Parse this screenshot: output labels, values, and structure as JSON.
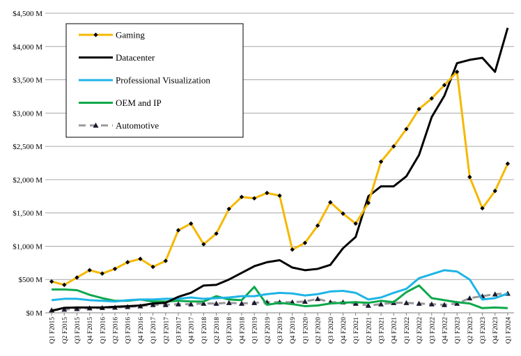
{
  "chart_data": {
    "type": "line",
    "ylim": [
      0,
      4500
    ],
    "y_ticks": [
      {
        "value": 0,
        "label": "$0 M"
      },
      {
        "value": 500,
        "label": "$500 M"
      },
      {
        "value": 1000,
        "label": "$1,000 M"
      },
      {
        "value": 1500,
        "label": "$1,500 M"
      },
      {
        "value": 2000,
        "label": "$2,000 M"
      },
      {
        "value": 2500,
        "label": "$2,500 M"
      },
      {
        "value": 3000,
        "label": "$3,000 M"
      },
      {
        "value": 3500,
        "label": "$3,500 M"
      },
      {
        "value": 4000,
        "label": "$4,000 M"
      },
      {
        "value": 4500,
        "label": "$4,500 M"
      }
    ],
    "grid": "horizontal",
    "legend_position": "top-left",
    "categories": [
      "Q1 F2015",
      "Q2 F2015",
      "Q3 F2015",
      "Q4 F2015",
      "Q1 F2016",
      "Q2 F2016",
      "Q3 F2016",
      "Q4 F2016",
      "Q1 F2017",
      "Q2 F2017",
      "Q3 F2017",
      "Q4 F2017",
      "Q1 F2018",
      "Q2 F2018",
      "Q3 F2018",
      "Q4 F2018",
      "Q1 F2019",
      "Q2 F2019",
      "Q3 F2019",
      "Q4 F2019",
      "Q1 F2020",
      "Q2 F2020",
      "Q3 F2020",
      "Q4 F2020",
      "Q1 F2021",
      "Q2 F2021",
      "Q3 F2021",
      "Q4 F2021",
      "Q1 F2022",
      "Q2 F2022",
      "Q3 F2022",
      "Q4 F2022",
      "Q1 F2023",
      "Q2 F2023",
      "Q3 F2023",
      "Q4 F2023",
      "Q1 F2024"
    ],
    "series": [
      {
        "name": "Gaming",
        "color": "#F5B800",
        "marker": "diamond",
        "dash": false,
        "values": [
          470,
          420,
          530,
          640,
          590,
          660,
          760,
          810,
          690,
          780,
          1240,
          1340,
          1030,
          1190,
          1560,
          1740,
          1720,
          1800,
          1760,
          950,
          1050,
          1310,
          1660,
          1490,
          1340,
          1650,
          2270,
          2500,
          2760,
          3060,
          3220,
          3420,
          3620,
          2040,
          1570,
          1830,
          2240
        ]
      },
      {
        "name": "Datacenter",
        "color": "#000000",
        "marker": "none",
        "dash": false,
        "values": [
          30,
          75,
          80,
          80,
          80,
          90,
          100,
          110,
          140,
          150,
          240,
          300,
          410,
          420,
          500,
          600,
          700,
          760,
          790,
          680,
          640,
          660,
          720,
          970,
          1140,
          1750,
          1900,
          1900,
          2050,
          2370,
          2940,
          3260,
          3750,
          3800,
          3830,
          3620,
          4280
        ]
      },
      {
        "name": "Professional Visualization",
        "color": "#1EB4E6",
        "marker": "none",
        "dash": false,
        "values": [
          190,
          210,
          210,
          190,
          180,
          170,
          190,
          200,
          200,
          210,
          210,
          230,
          210,
          220,
          230,
          250,
          250,
          280,
          300,
          290,
          260,
          280,
          320,
          330,
          300,
          200,
          230,
          300,
          360,
          520,
          580,
          640,
          620,
          500,
          200,
          220,
          290
        ]
      },
      {
        "name": "OEM and IP",
        "color": "#0BA84A",
        "marker": "none",
        "dash": false,
        "values": [
          350,
          350,
          340,
          270,
          220,
          180,
          180,
          200,
          170,
          170,
          180,
          170,
          170,
          250,
          200,
          190,
          390,
          120,
          150,
          130,
          100,
          110,
          140,
          150,
          160,
          150,
          180,
          160,
          310,
          410,
          220,
          190,
          160,
          140,
          70,
          80,
          70
        ]
      },
      {
        "name": "Automotive",
        "color": "#999999",
        "marker": "triangle",
        "dash": true,
        "values": [
          40,
          50,
          60,
          70,
          75,
          80,
          90,
          100,
          120,
          120,
          130,
          130,
          140,
          140,
          150,
          140,
          150,
          160,
          160,
          160,
          170,
          210,
          160,
          160,
          140,
          110,
          130,
          150,
          150,
          140,
          130,
          120,
          140,
          220,
          250,
          280,
          290
        ]
      }
    ]
  }
}
